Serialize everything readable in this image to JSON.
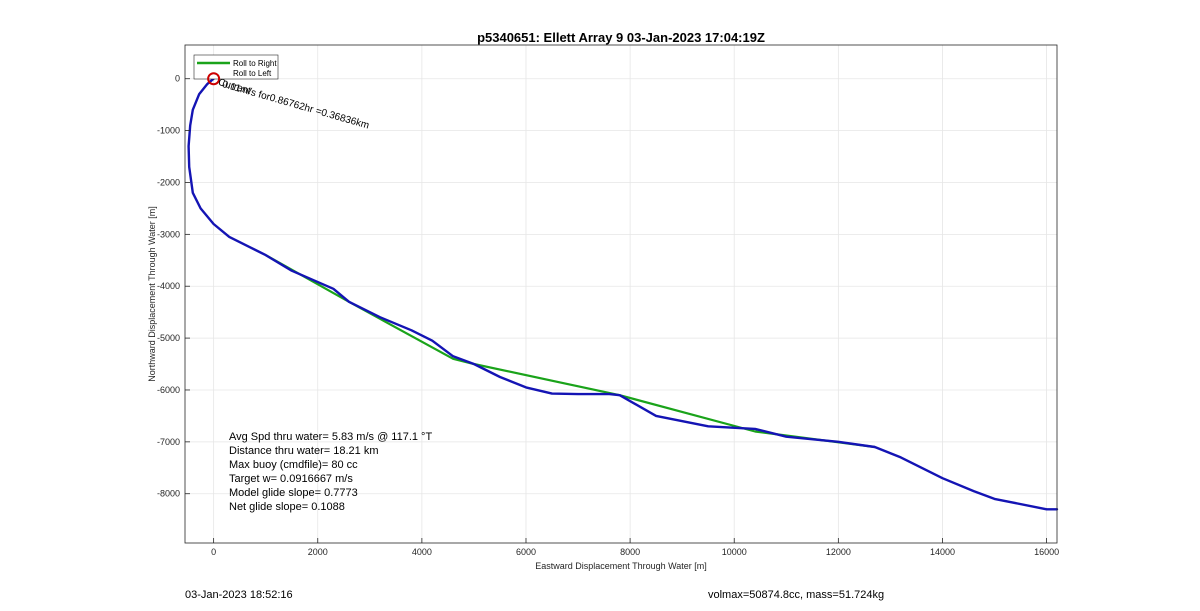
{
  "chart_data": {
    "type": "line",
    "title": "p5340651: Ellett Array 9 03-Jan-2023 17:04:19Z",
    "xlabel": "Eastward Displacement Through Water [m]",
    "ylabel": "Northward Displacement Through Water [m]",
    "xlim": [
      -550,
      16200
    ],
    "ylim": [
      -8950,
      650
    ],
    "xticks": [
      0,
      2000,
      4000,
      6000,
      8000,
      10000,
      12000,
      14000,
      16000
    ],
    "xtick_labels": [
      "0",
      "2000",
      "4000",
      "6000",
      "8000",
      "10000",
      "12000",
      "14000",
      "16000"
    ],
    "yticks": [
      0,
      -1000,
      -2000,
      -3000,
      -4000,
      -5000,
      -6000,
      -7000,
      -8000
    ],
    "ytick_labels": [
      "0",
      "-1000",
      "-2000",
      "-3000",
      "-4000",
      "-5000",
      "-6000",
      "-7000",
      "-8000"
    ],
    "grid": true,
    "legend": {
      "placement": "top-left",
      "entries": [
        "Roll to Right",
        "Roll to Left"
      ]
    },
    "colors": {
      "roll_right": "#1aa31a",
      "track": "#1414b4",
      "black_segments": "#000000",
      "start_marker": "#cc0000"
    },
    "series": [
      {
        "name": "Roll to Right",
        "x": [
          1000,
          2600,
          4600,
          5000,
          7800,
          10400,
          12700
        ],
        "y": [
          -3400,
          -4300,
          -5400,
          -5500,
          -6100,
          -6800,
          -7100
        ]
      },
      {
        "x": [
          0,
          -120,
          -280,
          -400,
          -450,
          -480,
          -470,
          -400,
          -250,
          0,
          300,
          700,
          1000,
          1500,
          2300,
          2600,
          3200,
          3800,
          4200,
          4600,
          5000,
          5500,
          6000,
          6500,
          7000,
          7600,
          7800,
          8500,
          9500,
          10400,
          11000,
          12000,
          12700,
          13200,
          14000,
          14600,
          15000,
          16000,
          16200
        ],
        "y": [
          0,
          -100,
          -300,
          -600,
          -900,
          -1300,
          -1700,
          -2200,
          -2500,
          -2800,
          -3050,
          -3250,
          -3400,
          -3700,
          -4050,
          -4300,
          -4600,
          -4850,
          -5050,
          -5350,
          -5500,
          -5750,
          -5950,
          -6070,
          -6080,
          -6080,
          -6100,
          -6500,
          -6700,
          -6750,
          -6900,
          -7000,
          -7100,
          -7300,
          -7700,
          -7950,
          -8100,
          -8300,
          -8300
        ]
      }
    ],
    "annotations": [
      "0.11m/s for0.86762hr =0.36836km",
      "Current"
    ],
    "stats": [
      "Avg Spd thru water=  5.83 m/s @ 117.1 °T",
      "Distance thru water= 18.21 km",
      "Max buoy (cmdfile)= 80 cc",
      "Target w= 0.0916667 m/s",
      "Model glide slope= 0.7773",
      "Net glide slope= 0.1088"
    ]
  },
  "footer": {
    "timestamp": "03-Jan-2023 18:52:16",
    "mass_info": "volmax=50874.8cc, mass=51.724kg"
  }
}
